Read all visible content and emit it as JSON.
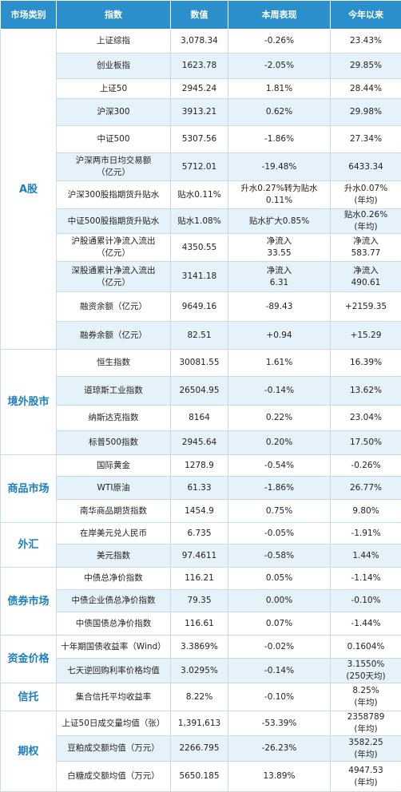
{
  "header": [
    "市场类别",
    "指数",
    "数值",
    "本周表现",
    "今年以来"
  ],
  "groups": [
    {
      "category": "A股",
      "rows": [
        [
          "上证综指",
          "3,078.34",
          "-0.26%",
          "23.43%"
        ],
        [
          "创业板指",
          "1623.78",
          "-2.05%",
          "29.85%"
        ],
        [
          "上证50",
          "2945.24",
          "1.81%",
          "28.44%"
        ],
        [
          "沪深300",
          "3913.21",
          "0.62%",
          "29.98%"
        ],
        [
          "中证500",
          "5307.56",
          "-1.86%",
          "27.34%"
        ],
        [
          "沪深两市日均交易额\n（亿元）",
          "5712.01",
          "-19.48%",
          "6433.34"
        ],
        [
          "沪深300股指期货升贴水",
          "贴水0.11%",
          "升水0.27%转为贴水\n0.11%",
          "升水0.07%\n(年均)"
        ],
        [
          "中证500股指期货升贴水",
          "贴水1.08%",
          "贴水扩大0.85%",
          "贴水0.26%\n(年均)"
        ],
        [
          "沪股通累计净流入流出\n（亿元）",
          "4350.55",
          "净流入\n33.55",
          "净流入\n583.77"
        ],
        [
          "深股通累计净流入流出\n（亿元）",
          "3141.18",
          "净流入\n6.31",
          "净流入\n490.61"
        ],
        [
          "融资余额（亿元）",
          "9649.16",
          "-89.43",
          "+2159.35"
        ],
        [
          "融券余额（亿元）",
          "82.51",
          "+0.94",
          "+15.29"
        ]
      ]
    },
    {
      "category": "境外股市",
      "rows": [
        [
          "恒生指数",
          "30081.55",
          "1.61%",
          "16.39%"
        ],
        [
          "道琼斯工业指数",
          "26504.95",
          "-0.14%",
          "13.62%"
        ],
        [
          "纳斯达克指数",
          "8164",
          "0.22%",
          "23.04%"
        ],
        [
          "标普500指数",
          "2945.64",
          "0.20%",
          "17.50%"
        ]
      ]
    },
    {
      "category": "商品市场",
      "rows": [
        [
          "国际黄金",
          "1278.9",
          "-0.54%",
          "-0.26%"
        ],
        [
          "WTI原油",
          "61.33",
          "-1.86%",
          "26.77%"
        ],
        [
          "南华商品期货指数",
          "1454.9",
          "0.75%",
          "9.80%"
        ]
      ]
    },
    {
      "category": "外汇",
      "rows": [
        [
          "在岸美元兑人民币",
          "6.735",
          "-0.05%",
          "-1.91%"
        ],
        [
          "美元指数",
          "97.4611",
          "-0.58%",
          "1.44%"
        ]
      ]
    },
    {
      "category": "债券市场",
      "rows": [
        [
          "中债总净价指数",
          "116.21",
          "0.05%",
          "-1.14%"
        ],
        [
          "中债企业债总净价指数",
          "79.35",
          "0.00%",
          "-0.10%"
        ],
        [
          "中债国债总净价指数",
          "116.61",
          "0.07%",
          "-1.44%"
        ]
      ]
    },
    {
      "category": "资金价格",
      "rows": [
        [
          "十年期国债收益率（Wind）",
          "3.3869%",
          "-0.02%",
          "0.1604%"
        ],
        [
          "七天逆回购利率价格均值",
          "3.0295%",
          "-0.14%",
          "3.1550%\n(250天均)"
        ]
      ]
    },
    {
      "category": "信托",
      "rows": [
        [
          "集合信托平均收益率",
          "8.22%",
          "-0.10%",
          "8.25%\n(年均)"
        ]
      ]
    },
    {
      "category": "期权",
      "rows": [
        [
          "上证50日成交量均值（张）",
          "1,391,613",
          "-53.39%",
          "2358789\n(年均)"
        ],
        [
          "豆粕成交额均值（万元）",
          "2266.795",
          "-26.23%",
          "3582.25\n(年均)"
        ],
        [
          "白糖成交额均值（万元）",
          "5650.185",
          "13.89%",
          "4947.53\n(年均)"
        ]
      ]
    }
  ]
}
